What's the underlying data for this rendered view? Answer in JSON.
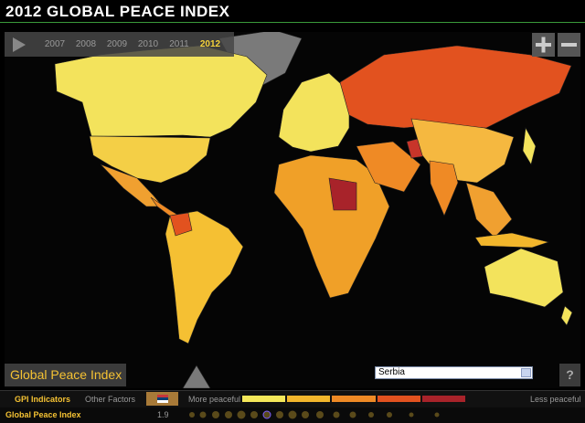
{
  "header": {
    "title": "2012 GLOBAL PEACE INDEX"
  },
  "years": [
    "2007",
    "2008",
    "2009",
    "2010",
    "2011",
    "2012"
  ],
  "panel": {
    "label": "Global Peace Index",
    "country": "Serbia",
    "help": "?"
  },
  "tabs": [
    "GPI Indicators",
    "Other Factors"
  ],
  "legend": {
    "low": "More peaceful",
    "high": "Less peaceful",
    "colors": [
      "#f5e85a",
      "#f2b62c",
      "#ef8a25",
      "#e2521f",
      "#a8232a"
    ]
  },
  "indicator": {
    "name": "Global Peace Index",
    "value": 1.9
  }
}
